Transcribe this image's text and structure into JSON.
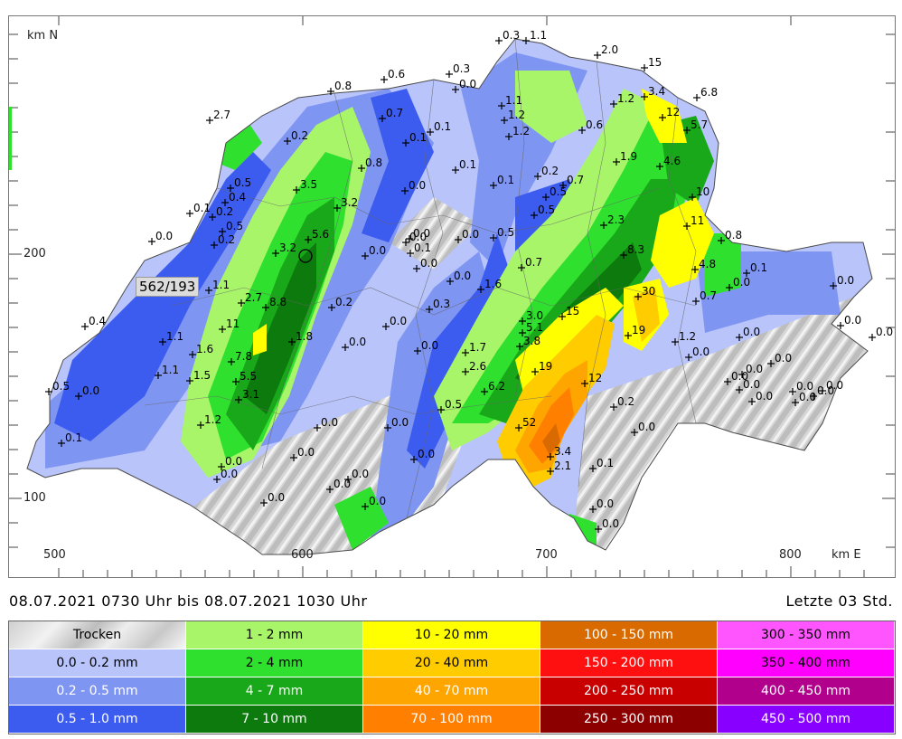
{
  "axes": {
    "north_label": "km N",
    "east_label": "km E",
    "y_ticks": [
      "200",
      "100"
    ],
    "x_ticks": [
      "500",
      "600",
      "700",
      "800"
    ]
  },
  "query_point": {
    "label": "562/193"
  },
  "time_range": {
    "from_date": "08.07.2021",
    "from_time": "0730 Uhr",
    "to_word": "bis",
    "to_date": "08.07.2021",
    "to_time": "1030 Uhr",
    "text": "08.07.2021  0730 Uhr   bis   08.07.2021  1030 Uhr"
  },
  "time_window": "Letzte 03 Std.",
  "legend": [
    {
      "label": "Trocken",
      "color": "#d0d0d0"
    },
    {
      "label": "1 - 2 mm",
      "color": "#a8f56a"
    },
    {
      "label": "10 - 20 mm",
      "color": "#ffff00"
    },
    {
      "label": "100 - 150 mm",
      "color": "#d96a00"
    },
    {
      "label": "300 - 350 mm",
      "color": "#ff55ff"
    },
    {
      "label": "0.0 - 0.2 mm",
      "color": "#b8c4fa"
    },
    {
      "label": "2 - 4 mm",
      "color": "#2fe02f"
    },
    {
      "label": "20 - 40 mm",
      "color": "#ffcc00"
    },
    {
      "label": "150 - 200 mm",
      "color": "#ff1010"
    },
    {
      "label": "350 - 400 mm",
      "color": "#ff00ff"
    },
    {
      "label": "0.2 - 0.5 mm",
      "color": "#7f95f2"
    },
    {
      "label": "4 - 7 mm",
      "color": "#19a819"
    },
    {
      "label": "40 - 70 mm",
      "color": "#ffa500"
    },
    {
      "label": "200 - 250 mm",
      "color": "#c80000"
    },
    {
      "label": "400 - 450 mm",
      "color": "#b0008c"
    },
    {
      "label": "0.5 - 1.0 mm",
      "color": "#3c5cf0"
    },
    {
      "label": "7 - 10 mm",
      "color": "#0c7a0c"
    },
    {
      "label": "70 - 100 mm",
      "color": "#ff7f00"
    },
    {
      "label": "250 - 300 mm",
      "color": "#8c0000"
    },
    {
      "label": "450 - 500 mm",
      "color": "#8800ff"
    }
  ],
  "stations": [
    {
      "v": "0.3"
    },
    {
      "v": "1.1"
    },
    {
      "v": "2.0"
    },
    {
      "v": "15"
    },
    {
      "v": "0.6"
    },
    {
      "v": "0.3"
    },
    {
      "v": "0.0"
    },
    {
      "v": "0.8"
    },
    {
      "v": "3.4"
    },
    {
      "v": "6.8"
    },
    {
      "v": "2.7"
    },
    {
      "v": "1.1"
    },
    {
      "v": "1.2"
    },
    {
      "v": "1.2"
    },
    {
      "v": "12"
    },
    {
      "v": "5.7"
    },
    {
      "v": "0.7"
    },
    {
      "v": "0.1"
    },
    {
      "v": "0.1"
    },
    {
      "v": "0.2"
    },
    {
      "v": "1.2"
    },
    {
      "v": "0.6"
    },
    {
      "v": "1.9"
    },
    {
      "v": "4.6"
    },
    {
      "v": "0.8"
    },
    {
      "v": "0.1"
    },
    {
      "v": "0.5"
    },
    {
      "v": "3.5"
    },
    {
      "v": "0.0"
    },
    {
      "v": "0.1"
    },
    {
      "v": "0.2"
    },
    {
      "v": "0.7"
    },
    {
      "v": "0.4"
    },
    {
      "v": "0.5"
    },
    {
      "v": "10"
    },
    {
      "v": "0.1"
    },
    {
      "v": "0.2"
    },
    {
      "v": "3.2"
    },
    {
      "v": "0.5"
    },
    {
      "v": "0.0"
    },
    {
      "v": "2.3"
    },
    {
      "v": "11"
    },
    {
      "v": "0.0"
    },
    {
      "v": "0.5"
    },
    {
      "v": "0.2"
    },
    {
      "v": "5.6"
    },
    {
      "v": "3.2"
    },
    {
      "v": "0.0"
    },
    {
      "v": "0.0"
    },
    {
      "v": "0.1"
    },
    {
      "v": "0.0"
    },
    {
      "v": "0.5"
    },
    {
      "v": "8.3"
    },
    {
      "v": "0.8"
    },
    {
      "v": "0.0"
    },
    {
      "v": "0.7"
    },
    {
      "v": "4.8"
    },
    {
      "v": "0.1"
    },
    {
      "v": "1.1"
    },
    {
      "v": "0.0"
    },
    {
      "v": "2.7"
    },
    {
      "v": "1.6"
    },
    {
      "v": "30"
    },
    {
      "v": "0.0"
    },
    {
      "v": "0.7"
    },
    {
      "v": "0.0"
    },
    {
      "v": "8.8"
    },
    {
      "v": "0.2"
    },
    {
      "v": "0.3"
    },
    {
      "v": "15"
    },
    {
      "v": "0.4"
    },
    {
      "v": "11"
    },
    {
      "v": "3.0"
    },
    {
      "v": "5.1"
    },
    {
      "v": "0.0"
    },
    {
      "v": "19"
    },
    {
      "v": "1.2"
    },
    {
      "v": "0.0"
    },
    {
      "v": "0.0"
    },
    {
      "v": "0.0"
    },
    {
      "v": "1.1"
    },
    {
      "v": "1.8"
    },
    {
      "v": "3.8"
    },
    {
      "v": "1.6"
    },
    {
      "v": "7.8"
    },
    {
      "v": "1.7"
    },
    {
      "v": "0.0"
    },
    {
      "v": "0.0"
    },
    {
      "v": "0.0"
    },
    {
      "v": "2.6"
    },
    {
      "v": "19"
    },
    {
      "v": "1.1"
    },
    {
      "v": "1.5"
    },
    {
      "v": "5.5"
    },
    {
      "v": "0.0"
    },
    {
      "v": "12"
    },
    {
      "v": "0.0"
    },
    {
      "v": "0.0"
    },
    {
      "v": "0.0"
    },
    {
      "v": "0.5"
    },
    {
      "v": "0.0"
    },
    {
      "v": "6.2"
    },
    {
      "v": "3.1"
    },
    {
      "v": "0.0"
    },
    {
      "v": "0.0"
    },
    {
      "v": "0.0"
    },
    {
      "v": "0.0"
    },
    {
      "v": "0.5"
    },
    {
      "v": "0.2"
    },
    {
      "v": "1.2"
    },
    {
      "v": "52"
    },
    {
      "v": "0.0"
    },
    {
      "v": "0.0"
    },
    {
      "v": "0.1"
    },
    {
      "v": "0.0"
    },
    {
      "v": "0.0"
    },
    {
      "v": "0.0"
    },
    {
      "v": "3.4"
    },
    {
      "v": "0.0"
    },
    {
      "v": "0.0"
    },
    {
      "v": "2.1"
    },
    {
      "v": "0.0"
    },
    {
      "v": "0.0"
    },
    {
      "v": "0.0"
    },
    {
      "v": "0.1"
    },
    {
      "v": "0.0"
    },
    {
      "v": "0.0"
    },
    {
      "v": "0.0"
    },
    {
      "v": "0.0"
    }
  ]
}
